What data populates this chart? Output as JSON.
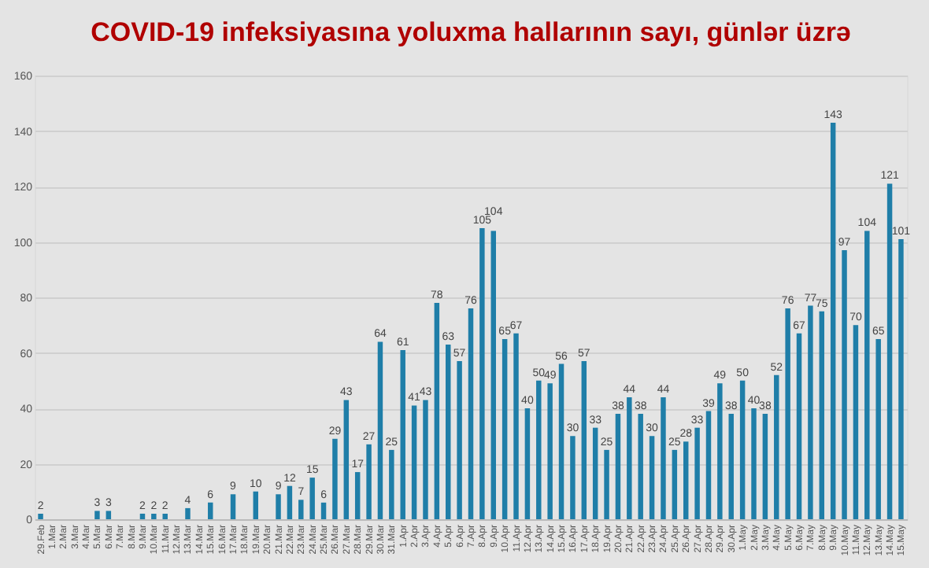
{
  "chart_data": {
    "type": "bar",
    "title": "COVID-19 infeksiyasına yoluxma hallarının sayı, günlər üzrə",
    "categories": [
      "29.Feb",
      "1.Mar",
      "2.Mar",
      "3.Mar",
      "4.Mar",
      "5.Mar",
      "6.Mar",
      "7.Mar",
      "8.Mar",
      "9.Mar",
      "10.Mar",
      "11.Mar",
      "12.Mar",
      "13.Mar",
      "14.Mar",
      "15.Mar",
      "16.Mar",
      "17.Mar",
      "18.Mar",
      "19.Mar",
      "20.Mar",
      "21.Mar",
      "22.Mar",
      "23.Mar",
      "24.Mar",
      "25.Mar",
      "26.Mar",
      "27.Mar",
      "28.Mar",
      "29.Mar",
      "30.Mar",
      "31.Mar",
      "1.Apr",
      "2.Apr",
      "3.Apr",
      "4.Apr",
      "5.Apr",
      "6.Apr",
      "7.Apr",
      "8.Apr",
      "9.Apr",
      "10.Apr",
      "11.Apr",
      "12.Apr",
      "13.Apr",
      "14.Apr",
      "15.Apr",
      "16.Apr",
      "17.Apr",
      "18.Apr",
      "19.Apr",
      "20.Apr",
      "21.Apr",
      "22.Apr",
      "23.Apr",
      "24.Apr",
      "25.Apr",
      "26.Apr",
      "27.Apr",
      "28.Apr",
      "29.Apr",
      "30.Apr",
      "1.May",
      "2.May",
      "3.May",
      "4.May",
      "5.May",
      "6.May",
      "7.May",
      "8.May",
      "9.May",
      "10.May",
      "11.May",
      "12.May",
      "13.May",
      "14.May",
      "15.May"
    ],
    "values": [
      2,
      null,
      null,
      null,
      null,
      3,
      3,
      null,
      null,
      2,
      2,
      2,
      null,
      4,
      null,
      6,
      null,
      9,
      null,
      10,
      null,
      9,
      12,
      7,
      15,
      6,
      29,
      43,
      17,
      27,
      64,
      25,
      61,
      41,
      43,
      78,
      63,
      57,
      76,
      105,
      104,
      65,
      67,
      40,
      50,
      49,
      56,
      30,
      57,
      33,
      25,
      38,
      44,
      38,
      30,
      44,
      25,
      28,
      33,
      39,
      49,
      38,
      50,
      40,
      38,
      52,
      76,
      67,
      77,
      75,
      143,
      97,
      70,
      104,
      65,
      121,
      101
    ],
    "color": "#1f7ea8",
    "ylim": [
      0,
      160
    ],
    "yticks": [
      0,
      20,
      40,
      60,
      80,
      100,
      120,
      140,
      160
    ],
    "grid": "y",
    "data_labels": true
  }
}
